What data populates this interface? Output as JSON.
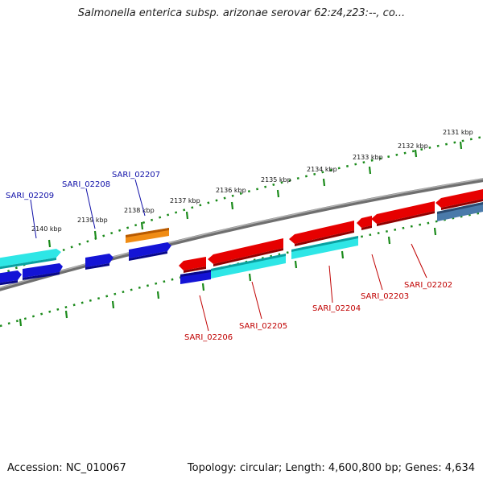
{
  "title": "Salmonella enterica subsp. arizonae serovar 62:z4,z23:--, co...",
  "footer": {
    "accession": "Accession: NC_010067",
    "stats": "Topology: circular; Length: 4,600,800 bp; Genes: 4,634"
  },
  "ticks": [
    {
      "label": "2131 kbp"
    },
    {
      "label": "2132 kbp"
    },
    {
      "label": "2133 kbp"
    },
    {
      "label": "2134 kbp"
    },
    {
      "label": "2135 kbp"
    },
    {
      "label": "2136 kbp"
    },
    {
      "label": "2137 kbp"
    },
    {
      "label": "2138 kbp"
    },
    {
      "label": "2139 kbp"
    },
    {
      "label": "2140 kbp"
    }
  ],
  "gene_labels": [
    {
      "id": "SARI_02209",
      "strand": "top"
    },
    {
      "id": "SARI_02208",
      "strand": "top"
    },
    {
      "id": "SARI_02207",
      "strand": "top"
    },
    {
      "id": "SARI_02206",
      "strand": "bottom"
    },
    {
      "id": "SARI_02205",
      "strand": "bottom"
    },
    {
      "id": "SARI_02204",
      "strand": "bottom"
    },
    {
      "id": "SARI_02203",
      "strand": "bottom"
    },
    {
      "id": "SARI_02202",
      "strand": "bottom"
    }
  ],
  "colors": {
    "red": "#e60000",
    "blue": "#1414d6",
    "cyan": "#2ee6e6",
    "orange": "#f08c14",
    "steel": "#4a7aaa",
    "backbone": "#8a8a8a",
    "tick": "#1a8a1a"
  }
}
